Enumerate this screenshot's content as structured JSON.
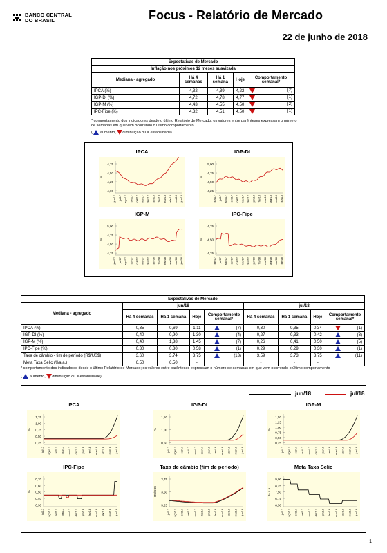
{
  "header": {
    "logo_line1": "BANCO CENTRAL",
    "logo_line2": "DO BRASIL",
    "title": "Focus - Relatório de Mercado",
    "date": "22 de junho de 2018"
  },
  "table1": {
    "title1": "Expectativas de Mercado",
    "title2": "Inflação nos próximos 12 meses suavizada",
    "col_label": "Mediana - agregado",
    "cols": [
      "Há 4 semanas",
      "Há 1 semana",
      "Hoje",
      "Comportamento semanal*"
    ],
    "rows": [
      {
        "label": "IPCA (%)",
        "w4": "4,32",
        "w1": "4,39",
        "hoje": "4,22",
        "trend": "down",
        "count": "(2)"
      },
      {
        "label": "IGP-DI (%)",
        "w4": "4,72",
        "w1": "4,78",
        "hoje": "4,77",
        "trend": "down",
        "count": "(1)"
      },
      {
        "label": "IGP-M (%)",
        "w4": "4,43",
        "w1": "4,55",
        "hoje": "4,50",
        "trend": "down",
        "count": "(2)"
      },
      {
        "label": "IPC-Fipe (%)",
        "w4": "4,32",
        "w1": "4,51",
        "hoje": "4,50",
        "trend": "down",
        "count": "(1)"
      }
    ],
    "note1": "* comportamento dos indicadores desde o último Relatório de Mercado; os valores entre parênteses expressam o número de semanas em que vem ocorrendo o último comportamento",
    "legend_up": "aumento,",
    "legend_down": "diminuição ou = estabilidade)"
  },
  "panel1": {
    "charts": [
      {
        "title": "IPCA",
        "ylabel": "%",
        "yticks": [
          "4,75",
          "4,50",
          "4,25",
          "4,00"
        ]
      },
      {
        "title": "IGP-DI",
        "ylabel": "%",
        "yticks": [
          "5,00",
          "4,75",
          "4,50",
          "4,25"
        ]
      },
      {
        "title": "IGP-M",
        "ylabel": "%",
        "yticks": [
          "5,00",
          "4,75",
          "4,50",
          "4,25"
        ]
      },
      {
        "title": "IPC-Fipe",
        "ylabel": "%",
        "yticks": [
          "4,75",
          "4,50",
          "4,25"
        ]
      }
    ],
    "xticks": [
      "jun/17",
      "jul/17",
      "ago/17",
      "set/17",
      "out/17",
      "nov/17",
      "dez/17",
      "jan/18",
      "fev/18",
      "mar/18",
      "abr/18",
      "mai/18",
      "jun/18"
    ]
  },
  "table2": {
    "title": "Expectativas de Mercado",
    "col_label": "Mediana - agregado",
    "group1": "jun/18",
    "group2": "jul/18",
    "cols": [
      "Há 4 semanas",
      "Há 1 semana",
      "Hoje",
      "Comportamento semanal*"
    ],
    "rows": [
      {
        "label": "IPCA (%)",
        "a": [
          "0,35",
          "0,69",
          "1,11"
        ],
        "at": "up",
        "ac": "(7)",
        "b": [
          "0,30",
          "0,35",
          "0,34"
        ],
        "bt": "down",
        "bc": "(1)"
      },
      {
        "label": "IGP-DI (%)",
        "a": [
          "0,40",
          "0,90",
          "1,30"
        ],
        "at": "up",
        "ac": "(4)",
        "b": [
          "0,27",
          "0,33",
          "0,42"
        ],
        "bt": "up",
        "bc": "(3)"
      },
      {
        "label": "IGP-M (%)",
        "a": [
          "0,40",
          "1,38",
          "1,45"
        ],
        "at": "up",
        "ac": "(7)",
        "b": [
          "0,26",
          "0,41",
          "0,50"
        ],
        "bt": "up",
        "bc": "(5)"
      },
      {
        "label": "IPC-Fipe (%)",
        "a": [
          "0,30",
          "0,30",
          "0,58"
        ],
        "at": "up",
        "ac": "(1)",
        "b": [
          "0,29",
          "0,29",
          "0,30"
        ],
        "bt": "up",
        "bc": "(1)"
      },
      {
        "label": "Taxa de câmbio - fim de período (R$/US$)",
        "a": [
          "3,60",
          "3,74",
          "3,75"
        ],
        "at": "up",
        "ac": "(13)",
        "b": [
          "3,59",
          "3,73",
          "3,75"
        ],
        "bt": "up",
        "bc": "(11)"
      },
      {
        "label": "Meta Taxa Selic (%a.a.)",
        "a": [
          "6,50",
          "6,50",
          "-"
        ],
        "at": "",
        "ac": "",
        "b": [
          "-",
          "-",
          "-"
        ],
        "bt": "",
        "bc": ""
      }
    ],
    "note1": "* comportamento dos indicadores desde o último Relatório de Mercado; os valores entre parênteses expressam o número de semanas em que vem ocorrendo o último comportamento",
    "legend_up": "aumento,",
    "legend_down": "diminuição ou = estabilidade)"
  },
  "panel2": {
    "legend": [
      "jun/18",
      "jul/18"
    ],
    "charts": [
      {
        "title": "IPCA",
        "ylabel": "%",
        "yticks": [
          "1,25",
          "1,00",
          "0,75",
          "0,50",
          "0,25"
        ]
      },
      {
        "title": "IGP-DI",
        "ylabel": "%",
        "yticks": [
          "1,50",
          "1,00",
          "0,50"
        ]
      },
      {
        "title": "IGP-M",
        "ylabel": "%",
        "yticks": [
          "1,50",
          "1,25",
          "1,00",
          "0,75",
          "0,50",
          "0,25"
        ]
      },
      {
        "title": "IPC-Fipe",
        "ylabel": "%",
        "yticks": [
          "0,70",
          "0,60",
          "0,50",
          "0,40",
          "0,30"
        ]
      },
      {
        "title": "Taxa de câmbio (fim de período)",
        "ylabel": "R$/US$",
        "yticks": [
          "3,75",
          "3,50",
          "3,25"
        ]
      },
      {
        "title": "Meta Taxa Selic",
        "ylabel": "% a.a.",
        "yticks": [
          "9,00",
          "8,25",
          "7,50",
          "6,75",
          "6,50"
        ]
      }
    ],
    "xticks": [
      "jul/17",
      "ago/17",
      "set/17",
      "out/17",
      "nov/17",
      "dez/17",
      "jan/18",
      "fev/18",
      "mar/18",
      "abr/18",
      "mai/18",
      "jun/18"
    ]
  },
  "page_number": "1",
  "colors": {
    "up": "#1a2aa8",
    "down": "#cc1111",
    "red_series": "#cc1111",
    "black_series": "#000000",
    "chart_bg": "#fffde0"
  }
}
